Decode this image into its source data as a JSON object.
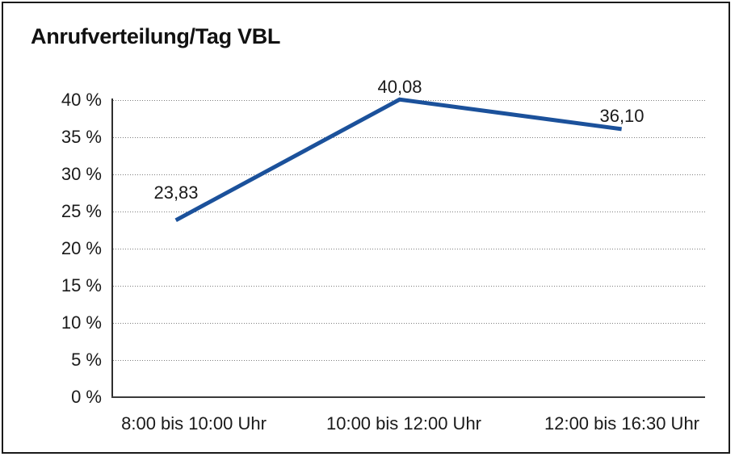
{
  "chart_data": {
    "type": "line",
    "title": "Anrufverteilung/Tag VBL",
    "categories": [
      "8:00 bis 10:00 Uhr",
      "10:00 bis 12:00 Uhr",
      "12:00 bis 16:30 Uhr"
    ],
    "values": [
      23.83,
      40.08,
      36.1
    ],
    "point_labels": [
      "23,83",
      "40,08",
      "36,10"
    ],
    "xlabel": "",
    "ylabel": "",
    "ylim": [
      0,
      40
    ],
    "ytick_values": [
      0,
      5,
      10,
      15,
      20,
      25,
      30,
      35,
      40
    ],
    "ytick_labels": [
      "0 %",
      "5 %",
      "10 %",
      "15 %",
      "20 %",
      "25 %",
      "30 %",
      "35 %",
      "40 %"
    ],
    "grid": "horizontal-dotted",
    "legend": "none",
    "line_color": "#1B519B",
    "text_color": "#1a1a1a"
  }
}
